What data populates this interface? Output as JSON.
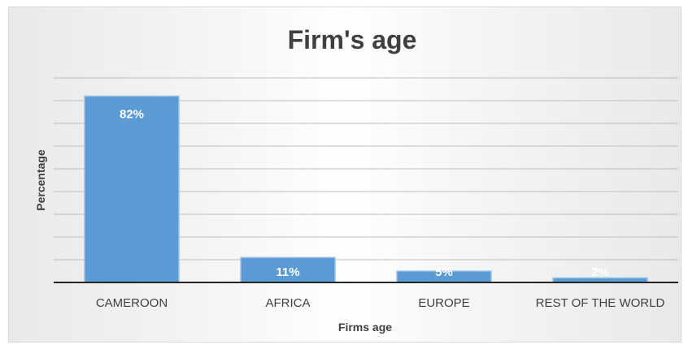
{
  "chart_data": {
    "type": "bar",
    "title": "Firm's age",
    "xlabel": "Firms age",
    "ylabel": "Percentage",
    "categories": [
      "CAMEROON",
      "AFRICA",
      "EUROPE",
      "REST OF THE WORLD"
    ],
    "values": [
      82,
      11,
      5,
      2
    ],
    "data_labels": [
      "82%",
      "11%",
      "5%",
      "2%"
    ],
    "ylim": [
      0,
      90
    ],
    "y_gridline_step": 10,
    "y_tick_labels_shown": false,
    "grid": true,
    "legend": "none",
    "colors": {
      "bar_fill": "#5b9bd5",
      "bar_stroke": "#9dc3e6",
      "grid": "#bfbfbf",
      "axis": "#262626",
      "text": "#404040",
      "data_label": "#ffffff"
    }
  }
}
